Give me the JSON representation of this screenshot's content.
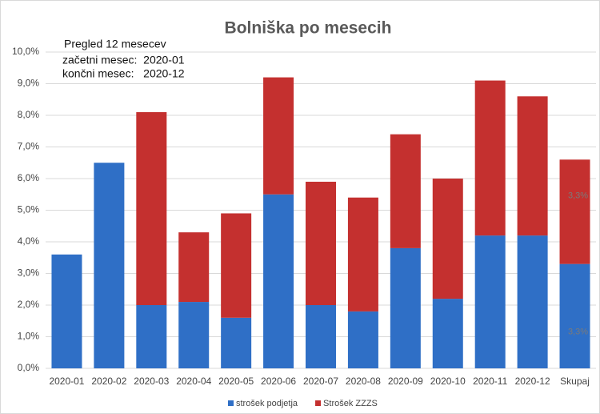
{
  "chart_data": {
    "type": "stacked-bar",
    "title": "Bolniška po mesecih",
    "annotations": [
      "Pregled 12 mesecev",
      "začetni mesec:  2020-01",
      "končni mesec:   2020-12"
    ],
    "categories": [
      "2020-01",
      "2020-02",
      "2020-03",
      "2020-04",
      "2020-05",
      "2020-06",
      "2020-07",
      "2020-08",
      "2020-09",
      "2020-10",
      "2020-11",
      "2020-12",
      "Skupaj"
    ],
    "series": [
      {
        "name": "strošek podjetja",
        "color": "#2f6fc6",
        "values": [
          3.6,
          6.5,
          2.0,
          2.1,
          1.6,
          5.5,
          2.0,
          1.8,
          3.8,
          2.2,
          4.2,
          4.2,
          3.3
        ],
        "value_labels": [
          null,
          null,
          null,
          null,
          null,
          null,
          null,
          null,
          null,
          null,
          null,
          null,
          "3,3%"
        ]
      },
      {
        "name": "Strošek ZZZS",
        "color": "#c4302f",
        "values": [
          0,
          0,
          6.1,
          2.2,
          3.3,
          3.7,
          3.9,
          3.6,
          3.6,
          3.8,
          4.9,
          4.4,
          3.3
        ],
        "value_labels": [
          null,
          null,
          null,
          null,
          null,
          null,
          null,
          null,
          null,
          null,
          null,
          null,
          "3,3%"
        ]
      }
    ],
    "ylim": [
      0,
      10
    ],
    "yticks": [
      {
        "value": 0,
        "label": "0,0%"
      },
      {
        "value": 1,
        "label": "1,0%"
      },
      {
        "value": 2,
        "label": "2,0%"
      },
      {
        "value": 3,
        "label": "3,0%"
      },
      {
        "value": 4,
        "label": "4,0%"
      },
      {
        "value": 5,
        "label": "5,0%"
      },
      {
        "value": 6,
        "label": "6,0%"
      },
      {
        "value": 7,
        "label": "7,0%"
      },
      {
        "value": 8,
        "label": "8,0%"
      },
      {
        "value": 9,
        "label": "9,0%"
      },
      {
        "value": 10,
        "label": "10,0%"
      }
    ],
    "grid": true,
    "legend": "bottom"
  }
}
